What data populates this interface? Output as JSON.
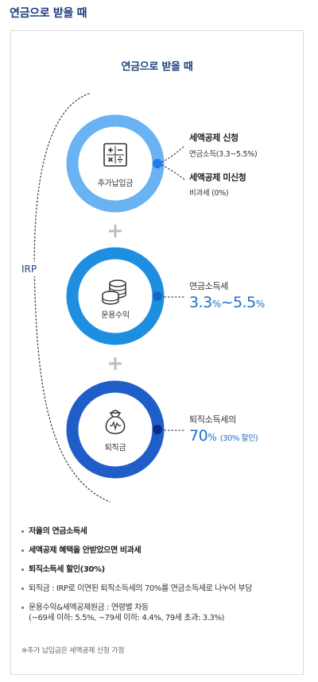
{
  "page_title": "연금으로 받을 때",
  "card_title": "연금으로 받을 때",
  "irp_label": "IRP",
  "plus_symbol": "+",
  "rings": [
    {
      "label": "추가납입금",
      "icon": "calculator-icon",
      "color": "#69b3f3"
    },
    {
      "label": "운용수익",
      "icon": "coins-icon",
      "color": "#1e8fe0"
    },
    {
      "label": "퇴직금",
      "icon": "money-bag-icon",
      "color": "#1f5ec9"
    }
  ],
  "ring1_notes": {
    "a_title": "세액공제 신청",
    "a_sub": "연금소득(3.3~5.5%)",
    "b_title": "세액공제 미신청",
    "b_sub": "비과세 (0%)"
  },
  "ring2_notes": {
    "title": "연금소득세",
    "rate_low": "3.3",
    "rate_high": "5.5",
    "unit": "%",
    "tilde": "~"
  },
  "ring3_notes": {
    "title": "퇴직소득세의",
    "rate": "70",
    "unit": "%",
    "discount": "(30% 할인)"
  },
  "bullets": [
    {
      "text": "저율의 연금소득세",
      "bold": true
    },
    {
      "text": "세액공제 혜택을 안받았으면 비과세",
      "bold": true
    },
    {
      "text": "퇴직소득세 할인(30%)",
      "bold": true
    },
    {
      "text": "퇴직금 : IRP로 이연된 퇴직소득세의 70%를 연금소득세로 나누어 부담",
      "bold": false
    },
    {
      "text": "운용수익&세액공제원금 : 연령별 차등",
      "text2": "(~69세 이하: 5.5%, ~79세 이하: 4.4%, 79세 초과: 3.3%)",
      "bold": false
    }
  ],
  "footnote": "※추가 납입금은 세액공제 신청 가정",
  "colors": {
    "title": "#1f3f80",
    "accent": "#1f6fc7",
    "dots": "#555555"
  }
}
